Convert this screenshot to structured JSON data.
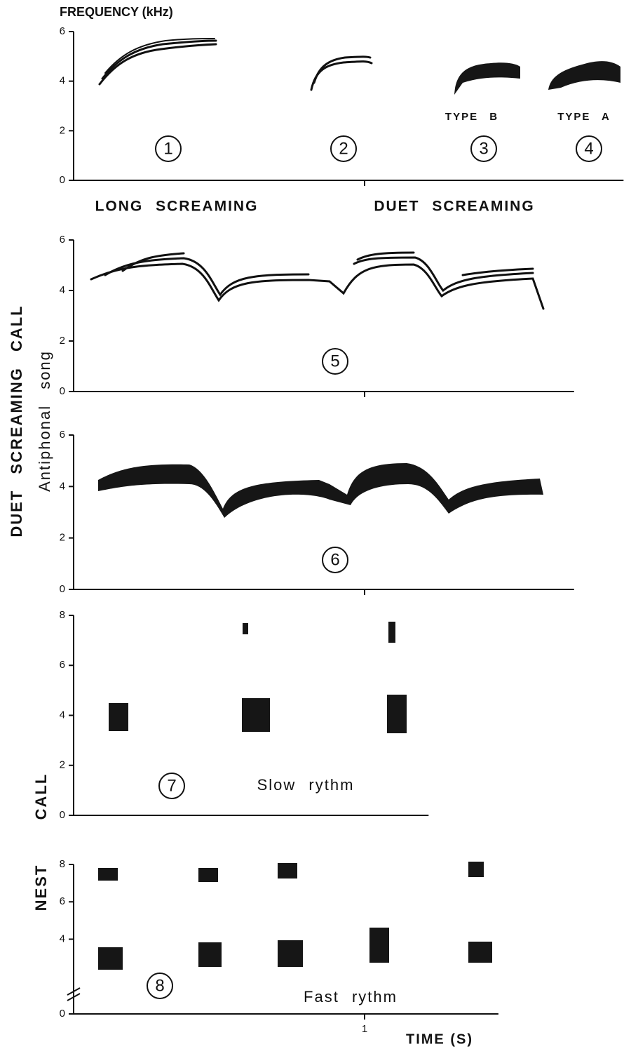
{
  "chart_data": [
    {
      "type": "spectrogram",
      "y_label": "FREQUENCY (kHz)",
      "ylim": [
        0,
        6
      ],
      "yticks": [
        0,
        2,
        4,
        6
      ],
      "xlim": [
        0,
        1.89
      ],
      "xticks": [
        1
      ],
      "xtick_labels_shown": false,
      "annotations": [
        "TYPE B",
        "TYPE A",
        "LONG SCREAMING",
        "DUET SCREAMING"
      ],
      "markers": [
        "1",
        "2",
        "3",
        "4"
      ]
    },
    {
      "type": "spectrogram",
      "ylim": [
        0,
        6
      ],
      "yticks": [
        0,
        2,
        4,
        6
      ],
      "xlim": [
        0,
        1.72
      ],
      "xticks": [
        1
      ],
      "xtick_labels_shown": false,
      "annotations": [],
      "markers": [
        "5"
      ]
    },
    {
      "type": "spectrogram",
      "ylim": [
        0,
        6
      ],
      "yticks": [
        0,
        2,
        4,
        6
      ],
      "xlim": [
        0,
        1.72
      ],
      "xticks": [
        1
      ],
      "xtick_labels_shown": false,
      "annotations": [],
      "markers": [
        "6"
      ]
    },
    {
      "type": "spectrogram",
      "ylim": [
        0,
        8
      ],
      "yticks": [
        0,
        2,
        4,
        6,
        8
      ],
      "xlim": [
        0,
        1.22
      ],
      "xticks": [],
      "xtick_labels_shown": false,
      "annotations": [
        "Slow rythm"
      ],
      "markers": [
        "7"
      ]
    },
    {
      "type": "spectrogram",
      "x_label": "TIME (S)",
      "ylim": [
        0,
        8
      ],
      "yticks": [
        0,
        4,
        6,
        8
      ],
      "xlim": [
        0,
        1.46
      ],
      "xticks": [
        1
      ],
      "xtick_labels_shown": true,
      "axis_break": true,
      "annotations": [
        "Fast rythm"
      ],
      "markers": [
        "8"
      ]
    }
  ],
  "side_labels": [
    "DUET SCREAMING CALL",
    "Antiphonal song",
    "CALL",
    "NEST"
  ]
}
